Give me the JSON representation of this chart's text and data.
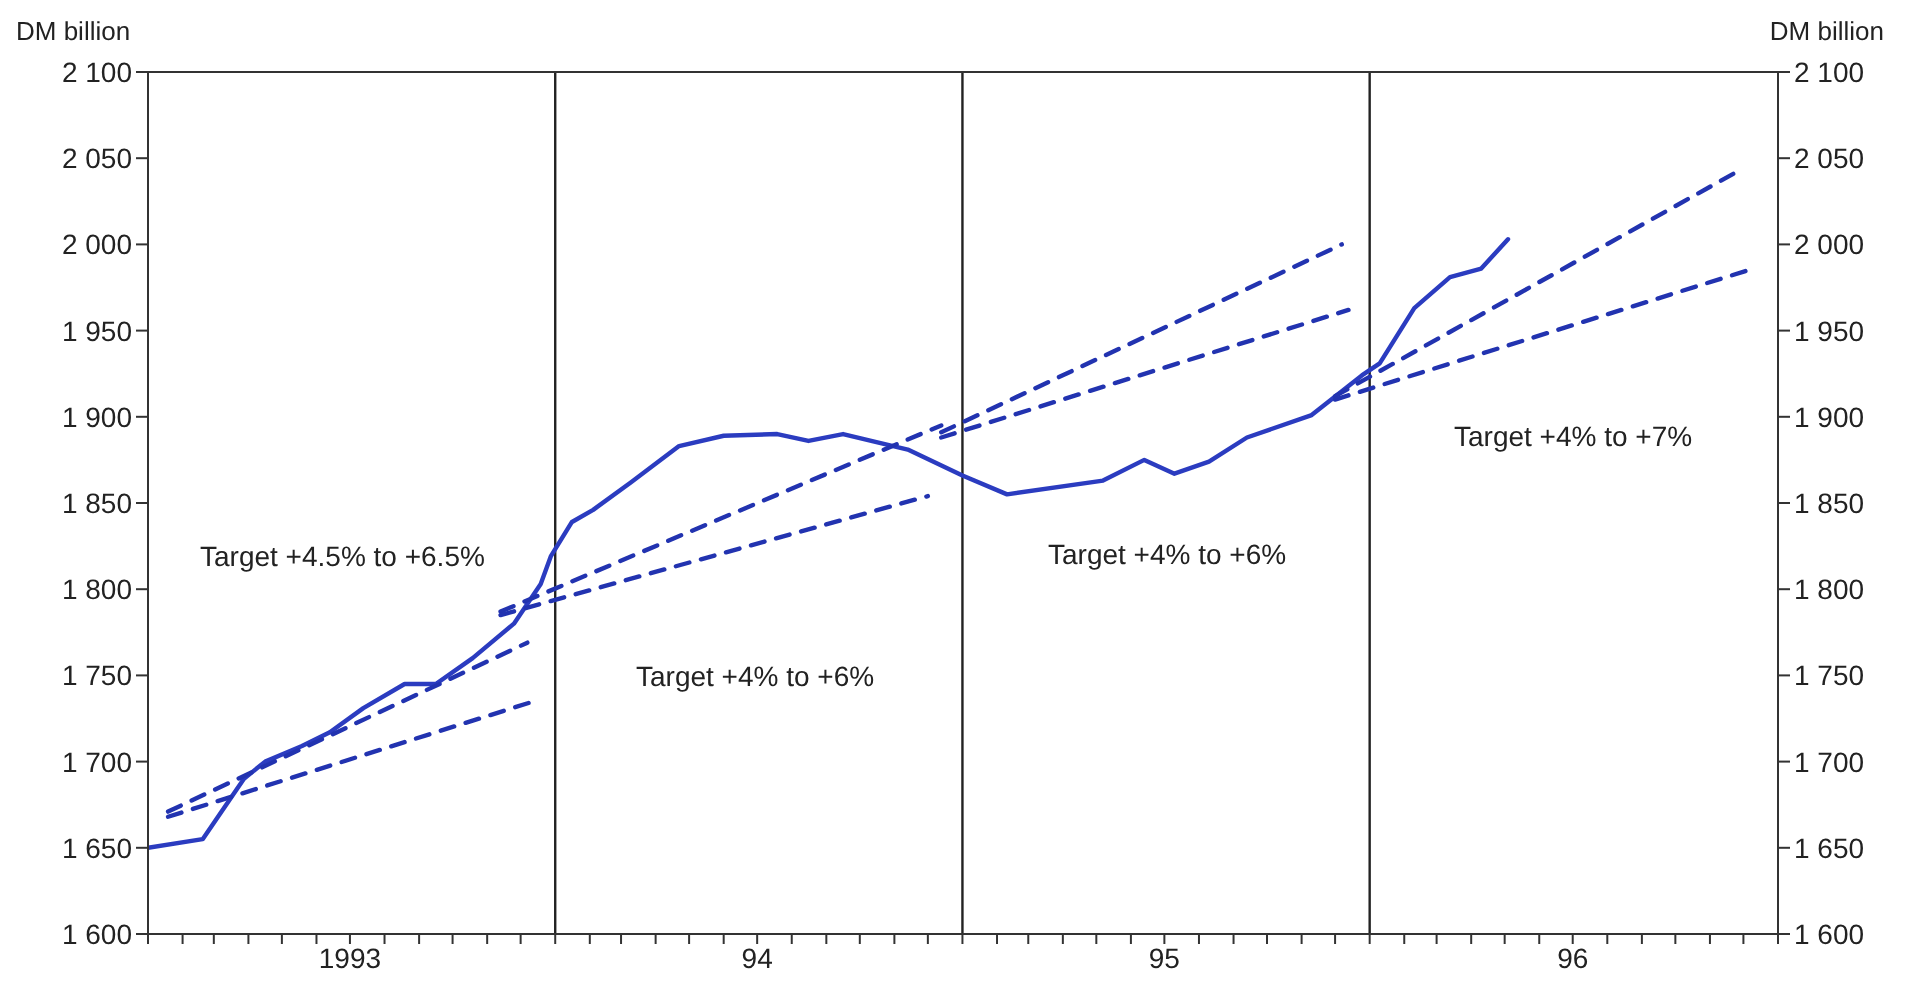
{
  "chart_data": {
    "type": "line",
    "ylabel": "DM billion",
    "y2label": "DM billion",
    "xlim": [
      "1993-01-01",
      "1997-01-01"
    ],
    "xticks": [
      {
        "value": "1993-01-01",
        "label": null
      },
      {
        "value": "1993-02-01",
        "label": null
      },
      {
        "value": "1993-03-01",
        "label": null
      },
      {
        "value": "1993-04-01",
        "label": null
      },
      {
        "value": "1993-05-01",
        "label": null
      },
      {
        "value": "1993-06-01",
        "label": null
      },
      {
        "value": "1993-07-01",
        "label": "1993"
      },
      {
        "value": "1993-08-01",
        "label": null
      },
      {
        "value": "1993-09-01",
        "label": null
      },
      {
        "value": "1993-10-01",
        "label": null
      },
      {
        "value": "1993-11-01",
        "label": null
      },
      {
        "value": "1993-12-01",
        "label": null
      },
      {
        "value": "1994-01-01",
        "label": null
      },
      {
        "value": "1994-02-01",
        "label": null
      },
      {
        "value": "1994-03-01",
        "label": null
      },
      {
        "value": "1994-04-01",
        "label": null
      },
      {
        "value": "1994-05-01",
        "label": null
      },
      {
        "value": "1994-06-01",
        "label": null
      },
      {
        "value": "1994-07-01",
        "label": "94"
      },
      {
        "value": "1994-08-01",
        "label": null
      },
      {
        "value": "1994-09-01",
        "label": null
      },
      {
        "value": "1994-10-01",
        "label": null
      },
      {
        "value": "1994-11-01",
        "label": null
      },
      {
        "value": "1994-12-01",
        "label": null
      },
      {
        "value": "1995-01-01",
        "label": null
      },
      {
        "value": "1995-02-01",
        "label": null
      },
      {
        "value": "1995-03-01",
        "label": null
      },
      {
        "value": "1995-04-01",
        "label": null
      },
      {
        "value": "1995-05-01",
        "label": null
      },
      {
        "value": "1995-06-01",
        "label": null
      },
      {
        "value": "1995-07-01",
        "label": "95"
      },
      {
        "value": "1995-08-01",
        "label": null
      },
      {
        "value": "1995-09-01",
        "label": null
      },
      {
        "value": "1995-10-01",
        "label": null
      },
      {
        "value": "1995-11-01",
        "label": null
      },
      {
        "value": "1995-12-01",
        "label": null
      },
      {
        "value": "1996-01-01",
        "label": null
      },
      {
        "value": "1996-02-01",
        "label": null
      },
      {
        "value": "1996-03-01",
        "label": null
      },
      {
        "value": "1996-04-01",
        "label": null
      },
      {
        "value": "1996-05-01",
        "label": null
      },
      {
        "value": "1996-06-01",
        "label": null
      },
      {
        "value": "1996-07-01",
        "label": "96"
      },
      {
        "value": "1996-08-01",
        "label": null
      },
      {
        "value": "1996-09-01",
        "label": null
      },
      {
        "value": "1996-10-01",
        "label": null
      },
      {
        "value": "1996-11-01",
        "label": null
      },
      {
        "value": "1996-12-01",
        "label": null
      },
      {
        "value": "1997-01-01",
        "label": null
      }
    ],
    "ylim": [
      1600,
      2100
    ],
    "yticks": [
      {
        "value": 1600,
        "label": "1 600"
      },
      {
        "value": 1650,
        "label": "1 650"
      },
      {
        "value": 1700,
        "label": "1 700"
      },
      {
        "value": 1750,
        "label": "1 750"
      },
      {
        "value": 1800,
        "label": "1 800"
      },
      {
        "value": 1850,
        "label": "1 850"
      },
      {
        "value": 1900,
        "label": "1 900"
      },
      {
        "value": 1950,
        "label": "1 950"
      },
      {
        "value": 2000,
        "label": "2 000"
      },
      {
        "value": 2050,
        "label": "2 050"
      },
      {
        "value": 2100,
        "label": "2 100"
      }
    ],
    "y2lim": [
      1600,
      2100
    ],
    "y2ticks": [
      {
        "value": 1600,
        "label": "1 600"
      },
      {
        "value": 1650,
        "label": "1 650"
      },
      {
        "value": 1700,
        "label": "1 700"
      },
      {
        "value": 1750,
        "label": "1 750"
      },
      {
        "value": 1800,
        "label": "1 800"
      },
      {
        "value": 1850,
        "label": "1 850"
      },
      {
        "value": 1900,
        "label": "1 900"
      },
      {
        "value": 1950,
        "label": "1 950"
      },
      {
        "value": 2000,
        "label": "2 000"
      },
      {
        "value": 2050,
        "label": "2 050"
      },
      {
        "value": 2100,
        "label": "2 100"
      }
    ],
    "grid": false,
    "legend": false,
    "marker": "none",
    "ref_lines": [
      {
        "axis": "x",
        "value": "1994-01-01",
        "color": "#222222"
      },
      {
        "axis": "x",
        "value": "1995-01-01",
        "color": "#222222"
      },
      {
        "axis": "x",
        "value": "1996-01-01",
        "color": "#222222"
      }
    ],
    "annotations": [
      "Target +4.5% to +6.5%",
      "Target +4% to +6%",
      "Target +4% to +6%",
      "Target +4% to +7%"
    ],
    "series": [
      {
        "color": "#2b3cc0",
        "line_style": "solid",
        "x": [
          "1993-01-01",
          "1993-02-19",
          "1993-03-28",
          "1993-04-16",
          "1993-05-19",
          "1993-06-13",
          "1993-07-13",
          "1993-08-19",
          "1993-09-16",
          "1993-10-19",
          "1993-11-25",
          "1993-12-19",
          "1993-12-28",
          "1994-01-16",
          "1994-02-04",
          "1994-03-10",
          "1994-04-22",
          "1994-06-01",
          "1994-07-19",
          "1994-08-16",
          "1994-09-16",
          "1994-11-13",
          "1995-01-01",
          "1995-02-10",
          "1995-05-07",
          "1995-06-13",
          "1995-07-10",
          "1995-08-10",
          "1995-09-13",
          "1995-11-10",
          "1995-12-25",
          "1996-01-10",
          "1996-02-10",
          "1996-03-13",
          "1996-04-10",
          "1996-05-04"
        ],
        "values": [
          1650,
          1655,
          1690,
          1700,
          1709,
          1717,
          1731,
          1745,
          1745,
          1760,
          1780,
          1803,
          1819,
          1839,
          1846,
          1862,
          1883,
          1889,
          1890,
          1886,
          1890,
          1881,
          1866,
          1855,
          1863,
          1875,
          1867,
          1874,
          1888,
          1901,
          1924,
          1931,
          1963,
          1981,
          1986,
          2003
        ]
      },
      {
        "color": "#2233b0",
        "line_style": "dashed",
        "x": [
          "1993-01-19",
          "1993-12-07"
        ],
        "values": [
          1671,
          1769
        ]
      },
      {
        "color": "#2233b0",
        "line_style": "dashed",
        "x": [
          "1993-01-19",
          "1993-12-13"
        ],
        "values": [
          1668,
          1735
        ]
      },
      {
        "color": "#2233b0",
        "line_style": "dashed",
        "x": [
          "1993-11-13",
          "1994-12-13"
        ],
        "values": [
          1787,
          1895
        ]
      },
      {
        "color": "#2233b0",
        "line_style": "dashed",
        "x": [
          "1993-11-13",
          "1994-12-01"
        ],
        "values": [
          1785,
          1854
        ]
      },
      {
        "color": "#2233b0",
        "line_style": "dashed",
        "x": [
          "1994-12-13",
          "1995-12-07"
        ],
        "values": [
          1891,
          2000
        ]
      },
      {
        "color": "#2233b0",
        "line_style": "dashed",
        "x": [
          "1994-12-13",
          "1995-12-13"
        ],
        "values": [
          1888,
          1962
        ]
      },
      {
        "color": "#2233b0",
        "line_style": "dashed",
        "x": [
          "1995-12-01",
          "1996-11-22"
        ],
        "values": [
          1912,
          2041
        ]
      },
      {
        "color": "#2233b0",
        "line_style": "dashed",
        "x": [
          "1995-12-01",
          "1996-12-10"
        ],
        "values": [
          1910,
          1986
        ]
      }
    ]
  }
}
